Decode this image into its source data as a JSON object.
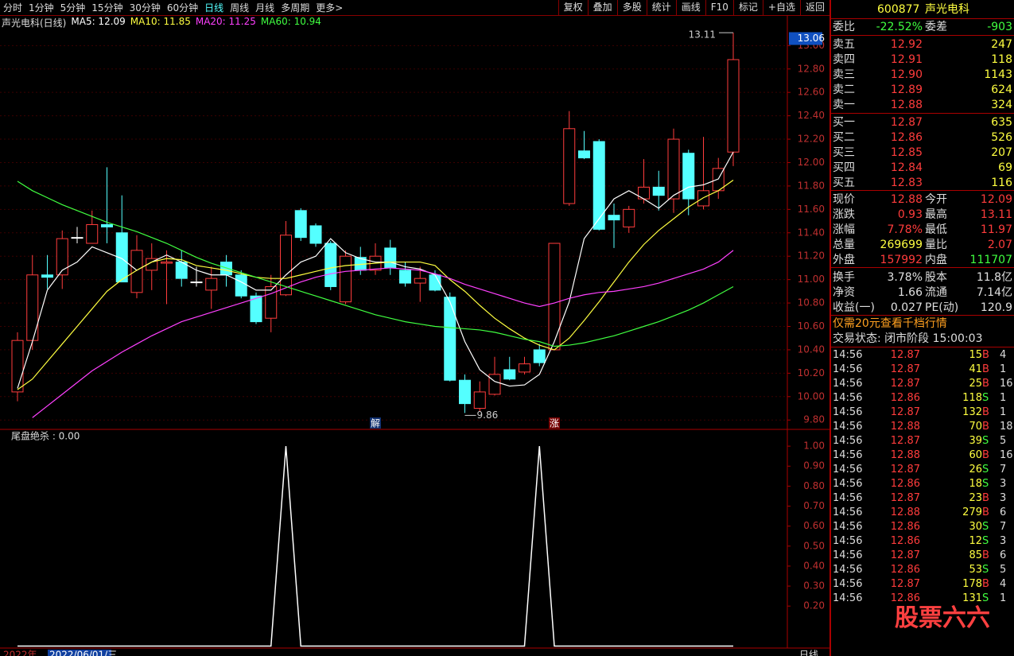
{
  "toolbar": {
    "left": [
      "分时",
      "1分钟",
      "5分钟",
      "15分钟",
      "30分钟",
      "60分钟",
      "日线",
      "周线",
      "月线",
      "多周期",
      "更多>"
    ],
    "active": 6,
    "right": [
      "复权",
      "叠加",
      "多股",
      "统计",
      "画线",
      "F10",
      "标记",
      "+自选",
      "返回"
    ]
  },
  "chart_data": [
    {
      "type": "candlestick",
      "title": "声光电科(日线)",
      "open": [
        10.04,
        10.48,
        11.04,
        11.04,
        11.36,
        11.31,
        11.47,
        11.4,
        10.89,
        11.08,
        11.14,
        11.15,
        10.98,
        10.91,
        11.15,
        11.04,
        10.86,
        10.67,
        10.87,
        11.59,
        11.46,
        11.31,
        10.81,
        11.19,
        11.08,
        11.27,
        11.08,
        10.97,
        11.04,
        10.85,
        10.14,
        9.9,
        10.02,
        10.23,
        10.21,
        10.4,
        10.4,
        11.65,
        12.1,
        12.18,
        11.55,
        11.45,
        11.69,
        11.79,
        11.69,
        12.08,
        11.63,
        11.76,
        12.09
      ],
      "high": [
        10.55,
        11.21,
        11.21,
        11.42,
        11.45,
        11.59,
        11.96,
        11.72,
        11.38,
        11.31,
        11.25,
        11.25,
        11.11,
        11.11,
        11.21,
        11.08,
        10.89,
        11.04,
        11.5,
        11.61,
        11.48,
        11.33,
        11.25,
        11.28,
        11.31,
        11.34,
        11.15,
        11.11,
        11.08,
        10.89,
        10.19,
        10.13,
        10.34,
        10.34,
        10.34,
        10.45,
        11.31,
        12.44,
        12.27,
        12.2,
        11.65,
        11.63,
        12.03,
        11.93,
        12.29,
        12.11,
        12.22,
        12.04,
        13.11
      ],
      "low": [
        9.96,
        10.4,
        10.92,
        10.92,
        11.31,
        11.31,
        11.31,
        10.98,
        10.84,
        10.91,
        10.79,
        10.94,
        10.94,
        10.75,
        10.94,
        10.84,
        10.62,
        10.55,
        10.86,
        11.33,
        11.28,
        10.91,
        10.79,
        11.04,
        11.04,
        11.04,
        10.94,
        10.81,
        10.9,
        10.13,
        9.86,
        9.87,
        10.01,
        10.14,
        10.19,
        10.26,
        10.4,
        11.63,
        12.03,
        11.42,
        11.27,
        11.4,
        11.65,
        11.59,
        11.57,
        11.55,
        11.6,
        11.69,
        11.97
      ],
      "close": [
        10.48,
        11.04,
        11.02,
        11.35,
        11.36,
        11.47,
        11.45,
        10.98,
        11.25,
        11.18,
        11.15,
        11.01,
        10.98,
        11.01,
        11.04,
        10.86,
        10.64,
        10.94,
        11.38,
        11.36,
        11.31,
        10.94,
        11.2,
        11.08,
        11.2,
        11.1,
        10.97,
        11.01,
        10.91,
        10.14,
        9.94,
        10.04,
        10.19,
        10.15,
        10.28,
        10.29,
        11.31,
        12.29,
        12.04,
        11.43,
        11.51,
        11.6,
        11.79,
        11.72,
        12.2,
        11.69,
        11.76,
        11.95,
        12.88
      ],
      "colors": {
        "up": "#ff3c3c",
        "down": "#54ffff",
        "flat": "#ffffff"
      },
      "lines": [
        {
          "name": "MA5: 12.09",
          "color": "#ffffff",
          "values": [
            10.07,
            10.47,
            10.91,
            11.08,
            11.15,
            11.28,
            11.23,
            11.18,
            11.08,
            11.15,
            11.21,
            11.15,
            11.08,
            11.04,
            11.04,
            10.98,
            10.91,
            10.91,
            11.04,
            11.15,
            11.2,
            11.35,
            11.23,
            11.18,
            11.15,
            11.15,
            11.11,
            11.09,
            11.04,
            10.81,
            10.47,
            10.23,
            10.13,
            10.09,
            10.1,
            10.19,
            10.47,
            10.81,
            11.35,
            11.52,
            11.69,
            11.76,
            11.69,
            11.61,
            11.72,
            11.79,
            11.81,
            11.86,
            12.09
          ]
        },
        {
          "name": "MA10: 11.85",
          "color": "#ffff40",
          "values": [
            10.06,
            10.15,
            10.3,
            10.45,
            10.6,
            10.75,
            10.9,
            11.0,
            11.08,
            11.15,
            11.18,
            11.17,
            11.12,
            11.1,
            11.08,
            11.05,
            11.02,
            11.01,
            11.01,
            11.04,
            11.07,
            11.1,
            11.12,
            11.13,
            11.14,
            11.15,
            11.15,
            11.15,
            11.12,
            11.0,
            10.9,
            10.78,
            10.67,
            10.58,
            10.5,
            10.44,
            10.4,
            10.5,
            10.65,
            10.81,
            10.98,
            11.15,
            11.3,
            11.42,
            11.52,
            11.62,
            11.7,
            11.76,
            11.85
          ]
        },
        {
          "name": "MA20: 11.25",
          "color": "#ff40ff",
          "values": [
            null,
            9.82,
            9.92,
            10.02,
            10.12,
            10.22,
            10.3,
            10.38,
            10.45,
            10.52,
            10.58,
            10.64,
            10.68,
            10.72,
            10.76,
            10.8,
            10.84,
            10.88,
            10.93,
            10.98,
            11.02,
            11.05,
            11.07,
            11.08,
            11.09,
            11.1,
            11.09,
            11.08,
            11.05,
            11.01,
            10.96,
            10.92,
            10.88,
            10.84,
            10.8,
            10.77,
            10.8,
            10.84,
            10.87,
            10.89,
            10.9,
            10.92,
            10.94,
            10.97,
            11.01,
            11.05,
            11.09,
            11.15,
            11.25
          ]
        },
        {
          "name": "MA60: 10.94",
          "color": "#40ff40",
          "values": [
            11.84,
            11.76,
            11.7,
            11.64,
            11.59,
            11.54,
            11.49,
            11.45,
            11.41,
            11.36,
            11.31,
            11.25,
            11.19,
            11.14,
            11.1,
            11.06,
            11.02,
            10.98,
            10.94,
            10.9,
            10.86,
            10.82,
            10.78,
            10.74,
            10.7,
            10.67,
            10.64,
            10.62,
            10.6,
            10.59,
            10.58,
            10.57,
            10.55,
            10.52,
            10.49,
            10.47,
            10.43,
            10.44,
            10.46,
            10.49,
            10.52,
            10.56,
            10.6,
            10.64,
            10.69,
            10.74,
            10.8,
            10.87,
            10.94
          ]
        }
      ],
      "ylim": [
        9.72,
        13.24
      ],
      "yticks": [
        {
          "value": 9.8,
          "label": "9.80"
        },
        {
          "value": 10,
          "label": "10.00"
        },
        {
          "value": 10.2,
          "label": "10.20"
        },
        {
          "value": 10.4,
          "label": "10.40"
        },
        {
          "value": 10.6,
          "label": "10.60"
        },
        {
          "value": 10.8,
          "label": "10.80"
        },
        {
          "value": 11,
          "label": "11.00"
        },
        {
          "value": 11.2,
          "label": "11.20"
        },
        {
          "value": 11.4,
          "label": "11.40"
        },
        {
          "value": 11.6,
          "label": "11.60"
        },
        {
          "value": 11.8,
          "label": "11.80"
        },
        {
          "value": 12,
          "label": "12.00"
        },
        {
          "value": 12.2,
          "label": "12.20"
        },
        {
          "value": 12.4,
          "label": "12.40"
        },
        {
          "value": 12.6,
          "label": "12.60"
        },
        {
          "value": 12.8,
          "label": "12.80"
        },
        {
          "value": 13,
          "label": "13.00"
        }
      ],
      "grid": true,
      "high_note": "13.11",
      "low_note": "9.86",
      "cursor_price": {
        "value": 13.06,
        "label": "13.06"
      },
      "signals": [
        null,
        null,
        null,
        null,
        null,
        null,
        null,
        null,
        null,
        null,
        null,
        null,
        null,
        null,
        null,
        null,
        null,
        null,
        null,
        null,
        null,
        null,
        null,
        null,
        "解",
        null,
        null,
        null,
        null,
        null,
        null,
        null,
        null,
        null,
        null,
        null,
        "涨",
        null,
        null,
        null,
        null,
        null,
        null,
        null,
        null,
        null,
        null,
        null,
        null
      ]
    },
    {
      "type": "line",
      "title": "尾盘绝杀 : 0.00",
      "color": "#ffffff",
      "values": [
        0,
        0,
        0,
        0,
        0,
        0,
        0,
        0,
        0,
        0,
        0,
        0,
        0,
        0,
        0,
        0,
        0,
        0,
        1,
        0,
        0,
        0,
        0,
        0,
        0,
        0,
        0,
        0,
        0,
        0,
        0,
        0,
        0,
        0,
        0,
        1,
        0,
        0,
        0,
        0,
        0,
        0,
        0,
        0,
        0,
        0,
        0,
        0,
        0
      ],
      "ylim": [
        -0.01,
        1.08
      ],
      "yticks": [
        {
          "value": 0.2,
          "label": "0.20"
        },
        {
          "value": 0.3,
          "label": "0.30"
        },
        {
          "value": 0.4,
          "label": "0.40"
        },
        {
          "value": 0.5,
          "label": "0.50"
        },
        {
          "value": 0.6,
          "label": "0.60"
        },
        {
          "value": 0.7,
          "label": "0.70"
        },
        {
          "value": 0.8,
          "label": "0.80"
        },
        {
          "value": 0.9,
          "label": "0.90"
        },
        {
          "value": 1,
          "label": "1.00"
        }
      ]
    }
  ],
  "bottom": {
    "year": "2022年",
    "date": "2022/06/01/三",
    "period": "日线"
  },
  "quote": {
    "code": "600877",
    "name": "声光电科",
    "ratio_label": "委比",
    "ratio": "-22.52%",
    "diff_label": "委差",
    "diff": "-903",
    "sell": [
      [
        "卖五",
        "12.92",
        "247"
      ],
      [
        "卖四",
        "12.91",
        "118"
      ],
      [
        "卖三",
        "12.90",
        "1143"
      ],
      [
        "卖二",
        "12.89",
        "624"
      ],
      [
        "卖一",
        "12.88",
        "324"
      ]
    ],
    "buy": [
      [
        "买一",
        "12.87",
        "635"
      ],
      [
        "买二",
        "12.86",
        "526"
      ],
      [
        "买三",
        "12.85",
        "207"
      ],
      [
        "买四",
        "12.84",
        "69"
      ],
      [
        "买五",
        "12.83",
        "116"
      ]
    ],
    "stats": [
      [
        "现价",
        "12.88",
        "今开",
        "12.09"
      ],
      [
        "涨跌",
        "0.93",
        "最高",
        "13.11"
      ],
      [
        "涨幅",
        "7.78%",
        "最低",
        "11.97"
      ],
      [
        "总量",
        "269699",
        "量比",
        "2.07"
      ],
      [
        "外盘",
        "157992",
        "内盘",
        "111707"
      ],
      [
        "换手",
        "3.78%",
        "股本",
        "11.8亿"
      ],
      [
        "净资",
        "1.66",
        "流通",
        "7.14亿"
      ],
      [
        "收益(一)",
        "0.027",
        "PE(动)",
        "120.9"
      ]
    ],
    "stats_colors": [
      [
        "#ff3c3c",
        "#ff3c3c"
      ],
      [
        "#ff3c3c",
        "#ff3c3c"
      ],
      [
        "#ff3c3c",
        "#ff3c3c"
      ],
      [
        "#ffff40",
        "#ff3c3c"
      ],
      [
        "#ff3c3c",
        "#40ff40"
      ],
      [
        "#e0e0e0",
        "#e0e0e0"
      ],
      [
        "#e0e0e0",
        "#e0e0e0"
      ],
      [
        "#e0e0e0",
        "#e0e0e0"
      ]
    ],
    "promo": "仅需20元查看千档行情",
    "status": "交易状态: 闭市阶段 15:00:03"
  },
  "trades": [
    [
      "14:56",
      "12.87",
      "15",
      "B",
      "4"
    ],
    [
      "14:56",
      "12.87",
      "41",
      "B",
      "1"
    ],
    [
      "14:56",
      "12.87",
      "25",
      "B",
      "16"
    ],
    [
      "14:56",
      "12.86",
      "118",
      "S",
      "1"
    ],
    [
      "14:56",
      "12.87",
      "132",
      "B",
      "1"
    ],
    [
      "14:56",
      "12.88",
      "70",
      "B",
      "18"
    ],
    [
      "14:56",
      "12.87",
      "39",
      "S",
      "5"
    ],
    [
      "14:56",
      "12.88",
      "60",
      "B",
      "16"
    ],
    [
      "14:56",
      "12.87",
      "26",
      "S",
      "7"
    ],
    [
      "14:56",
      "12.86",
      "18",
      "S",
      "3"
    ],
    [
      "14:56",
      "12.87",
      "23",
      "B",
      "3"
    ],
    [
      "14:56",
      "12.88",
      "279",
      "B",
      "6"
    ],
    [
      "14:56",
      "12.86",
      "30",
      "S",
      "7"
    ],
    [
      "14:56",
      "12.86",
      "12",
      "S",
      "3"
    ],
    [
      "14:56",
      "12.87",
      "85",
      "B",
      "6"
    ],
    [
      "14:56",
      "12.86",
      "53",
      "S",
      "5"
    ],
    [
      "14:56",
      "12.87",
      "178",
      "B",
      "4"
    ],
    [
      "14:56",
      "12.86",
      "131",
      "S",
      "1"
    ]
  ],
  "watermark": "股票六六"
}
